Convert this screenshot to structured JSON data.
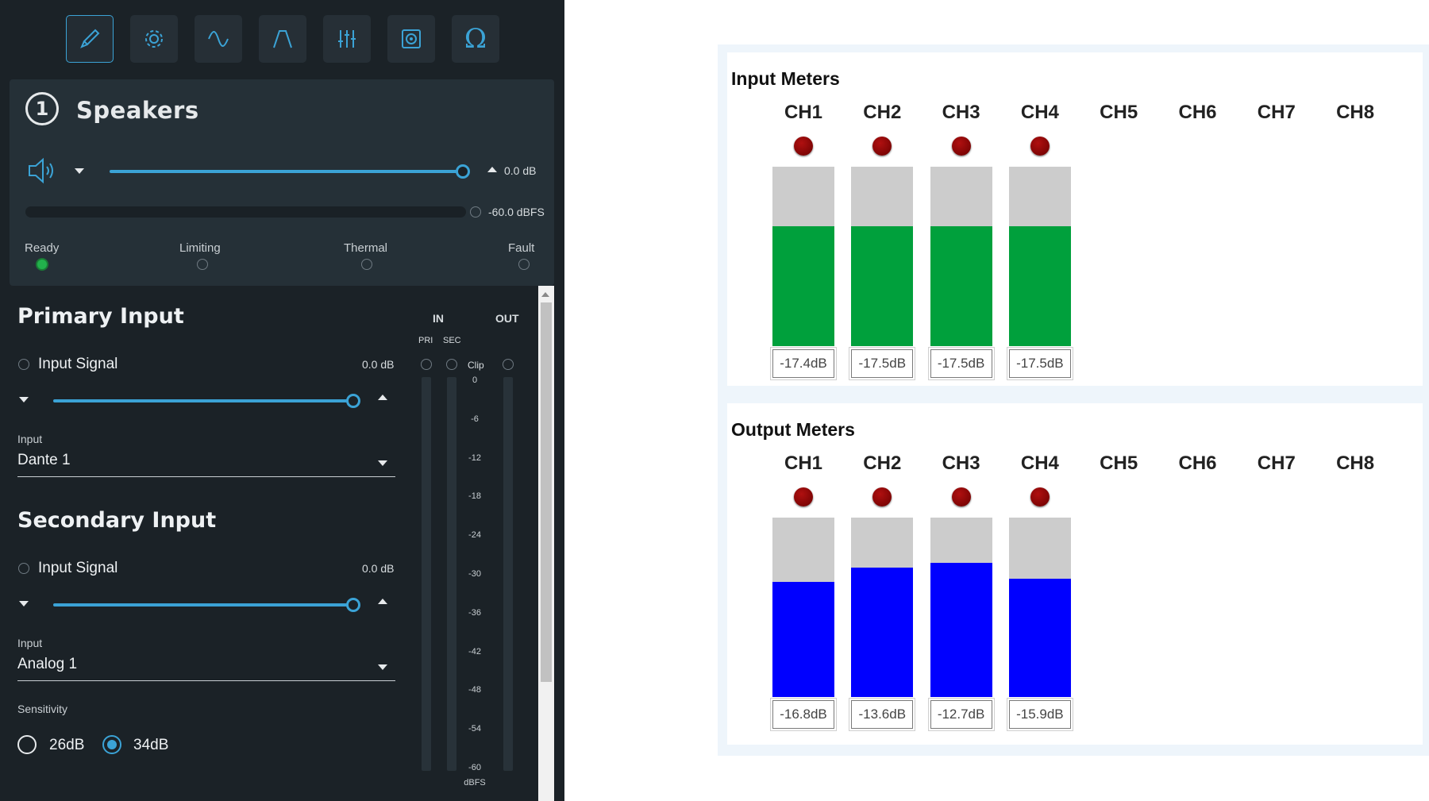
{
  "toolbar": {
    "buttons": [
      {
        "name": "brush-icon",
        "active": true
      },
      {
        "name": "gear-icon",
        "active": false
      },
      {
        "name": "wave-icon",
        "active": false
      },
      {
        "name": "filter-icon",
        "active": false
      },
      {
        "name": "mixer-sliders-icon",
        "active": false
      },
      {
        "name": "speaker-box-icon",
        "active": false
      },
      {
        "name": "omega-icon",
        "active": false,
        "glyph": "Ω"
      }
    ]
  },
  "speaker": {
    "number": "1",
    "title": "Speakers",
    "volume_db": "0.0 dB",
    "volume_level": 1.0,
    "meter_readout": "-60.0 dBFS",
    "status": [
      {
        "label": "Ready",
        "active": true
      },
      {
        "label": "Limiting",
        "active": false
      },
      {
        "label": "Thermal",
        "active": false
      },
      {
        "label": "Fault",
        "active": false
      }
    ]
  },
  "primary_input": {
    "title": "Primary Input",
    "signal_label": "Input Signal",
    "gain_db": "0.0 dB",
    "gain_level": 1.0,
    "input_label": "Input",
    "input_value": "Dante 1"
  },
  "secondary_input": {
    "title": "Secondary Input",
    "signal_label": "Input Signal",
    "gain_db": "0.0 dB",
    "gain_level": 1.0,
    "input_label": "Input",
    "input_value": "Analog 1",
    "sensitivity_label": "Sensitivity",
    "sensitivity_options": [
      "26dB",
      "34dB"
    ],
    "sensitivity_selected": "34dB"
  },
  "io_meters": {
    "in_label": "IN",
    "out_label": "OUT",
    "pri_label": "PRI",
    "sec_label": "SEC",
    "clip_label": "Clip",
    "scale": [
      "0",
      "-6",
      "-12",
      "-18",
      "-24",
      "-30",
      "-36",
      "-42",
      "-48",
      "-54",
      "-60"
    ],
    "unit": "dBFS"
  },
  "input_meters": {
    "title": "Input Meters",
    "channels": [
      "CH1",
      "CH2",
      "CH3",
      "CH4",
      "CH5",
      "CH6",
      "CH7",
      "CH8"
    ],
    "active_count": 4,
    "fill_color": "#00a03c",
    "fill_fraction": [
      0.67,
      0.67,
      0.67,
      0.67
    ],
    "readouts": [
      "-17.4dB",
      "-17.5dB",
      "-17.5dB",
      "-17.5dB"
    ]
  },
  "output_meters": {
    "title": "Output Meters",
    "channels": [
      "CH1",
      "CH2",
      "CH3",
      "CH4",
      "CH5",
      "CH6",
      "CH7",
      "CH8"
    ],
    "active_count": 4,
    "fill_color": "#0000ff",
    "fill_fraction": [
      0.64,
      0.72,
      0.75,
      0.66
    ],
    "readouts": [
      "-16.8dB",
      "-13.6dB",
      "-12.7dB",
      "-15.9dB"
    ]
  },
  "colors": {
    "accent": "#3ba3d6",
    "panel_bg": "#1b2227",
    "ready_led": "#22b14c",
    "channel_led": "#8b0000"
  }
}
